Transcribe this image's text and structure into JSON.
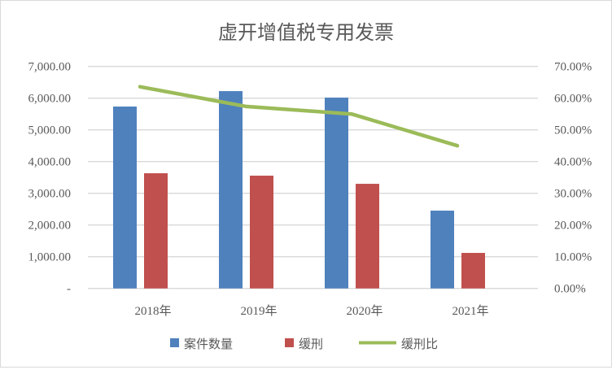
{
  "chart_data": {
    "type": "bar",
    "title": "虚开增值税专用发票",
    "categories": [
      "2018年",
      "2019年",
      "2020年",
      "2021年"
    ],
    "series": [
      {
        "name": "案件数量",
        "type": "bar",
        "axis": "left",
        "color": "#4f81bd",
        "values": [
          5735,
          6222,
          6017,
          2453
        ]
      },
      {
        "name": "缓刑",
        "type": "bar",
        "axis": "left",
        "color": "#c0504d",
        "values": [
          3632,
          3556,
          3299,
          1120
        ]
      },
      {
        "name": "缓刑比",
        "type": "line",
        "axis": "right",
        "color": "#9bbb59",
        "values": [
          0.636,
          0.574,
          0.55,
          0.45
        ]
      }
    ],
    "left_axis": {
      "ylim": [
        0,
        7000
      ],
      "ticks": [
        "-",
        "1,000.00",
        "2,000.00",
        "3,000.00",
        "4,000.00",
        "5,000.00",
        "6,000.00",
        "7,000.00"
      ]
    },
    "right_axis": {
      "ylim": [
        0,
        0.7
      ],
      "ticks": [
        "0.00%",
        "10.00%",
        "20.00%",
        "30.00%",
        "40.00%",
        "50.00%",
        "60.00%",
        "70.00%"
      ]
    },
    "grid": true,
    "legend": "bottom"
  }
}
